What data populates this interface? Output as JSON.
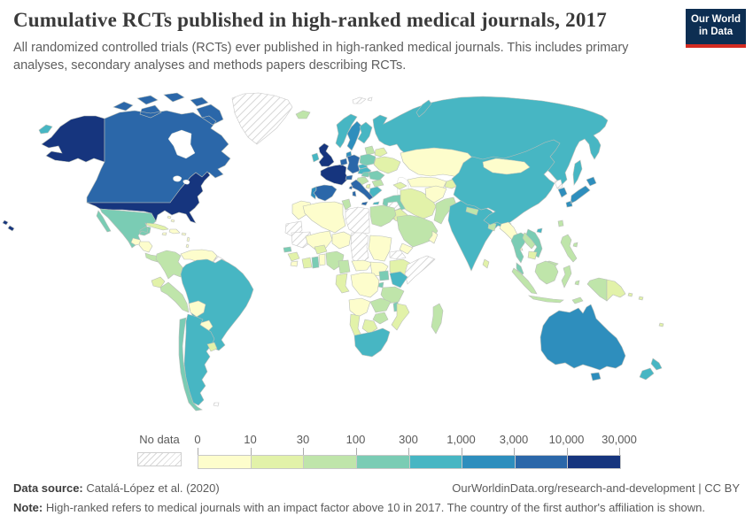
{
  "header": {
    "title": "Cumulative RCTs published in high-ranked medical journals, 2017",
    "subtitle": "All randomized controlled trials (RCTs) ever published in high-ranked medical journals. This includes primary analyses, secondary analyses and methods papers describing RCTs.",
    "logo_line1": "Our World",
    "logo_line2": "in Data",
    "logo_bg": "#0d2e52",
    "logo_accent": "#d42b21"
  },
  "legend": {
    "no_data_label": "No data",
    "tick_labels": [
      "0",
      "10",
      "30",
      "100",
      "300",
      "1,000",
      "3,000",
      "10,000",
      "30,000"
    ],
    "bins": [
      {
        "range": "0-10",
        "color": "#fdfdcc"
      },
      {
        "range": "10-30",
        "color": "#e2f2a9"
      },
      {
        "range": "30-100",
        "color": "#bfe5aa"
      },
      {
        "range": "100-300",
        "color": "#7accb4"
      },
      {
        "range": "300-1,000",
        "color": "#47b6c3"
      },
      {
        "range": "1,000-3,000",
        "color": "#2e8ebd"
      },
      {
        "range": "3,000-10,000",
        "color": "#2b67a9"
      },
      {
        "range": "10,000-30,000",
        "color": "#16357e"
      }
    ]
  },
  "footer": {
    "source_label": "Data source:",
    "source_text": "Catalá-López et al. (2020)",
    "link": "OurWorldinData.org/research-and-development",
    "separator": "|",
    "license": "CC BY",
    "note_label": "Note:",
    "note_text": "High-ranked refers to medical journals with an impact factor above 10 in 2017. The country of the first author's affiliation is shown."
  },
  "map": {
    "fills": {
      "usa": "#16357e",
      "alaska": "#16357e",
      "hawaii": "#16357e",
      "canada": "#2b67a9",
      "mexico": "#7accb4",
      "guatemala": "#fdfdcc",
      "honduras_nicaragua": "#fdfdcc",
      "costa_rica_panama": "#bfe5aa",
      "cuba": "#e2f2a9",
      "hispaniola": "#fdfdcc",
      "jamaica": "#fdfdcc",
      "puerto_rico": "#fdfdcc",
      "bahamas": "#fdfdcc",
      "lesser_antilles": "#fdfdcc",
      "colombia": "#bfe5aa",
      "venezuela": "#fdfdcc",
      "ecuador": "#e2f2a9",
      "peru": "#bfe5aa",
      "brazil": "#47b6c3",
      "bolivia": "#fdfdcc",
      "paraguay": "#fdfdcc",
      "uruguay": "#e2f2a9",
      "argentina": "#47b6c3",
      "chile": "#7accb4",
      "iceland": "#bfe5aa",
      "ireland": "#47b6c3",
      "uk": "#16357e",
      "portugal": "#2e8ebd",
      "spain": "#2b67a9",
      "france": "#16357e",
      "benelux": "#2b67a9",
      "germany": "#2b67a9",
      "switzerland": "#2b67a9",
      "denmark": "#2e8ebd",
      "norway": "#47b6c3",
      "sweden": "#2e8ebd",
      "finland": "#47b6c3",
      "baltics": "#bfe5aa",
      "poland": "#7accb4",
      "belarus": "#e2f2a9",
      "ukraine": "#e2f2a9",
      "czech_austria": "#47b6c3",
      "hungary": "#7accb4",
      "romania": "#7accb4",
      "balkans": "#bfe5aa",
      "bulgaria": "#bfe5aa",
      "albania": "#e2f2a9",
      "greece": "#47b6c3",
      "italy": "#2b67a9",
      "russia": "#47b6c3",
      "novaya_zemlya": "#47b6c3",
      "sakhalin": "#47b6c3",
      "chukotka_west": "#47b6c3",
      "turkey": "#7accb4",
      "caucasus": "#e2f2a9",
      "iraq": "#e2f2a9",
      "israel": "#2e8ebd",
      "jordan": "#e2f2a9",
      "saudi_arabia": "#bfe5aa",
      "yemen": "#fdfdcc",
      "oman": "#fdfdcc",
      "iran": "#e2f2a9",
      "afghanistan": "#fdfdcc",
      "pakistan": "#bfe5aa",
      "kazakhstan": "#fdfdcc",
      "central_asia": "#fdfdcc",
      "kyrgyz_tajik": "#e2f2a9",
      "india": "#47b6c3",
      "nepal": "#bfe5aa",
      "bangladesh": "#bfe5aa",
      "sri_lanka": "#e2f2a9",
      "myanmar": "#fdfdcc",
      "thailand": "#7accb4",
      "laos": "#bfe5aa",
      "cambodia": "#e2f2a9",
      "vietnam": "#7accb4",
      "malaysia": "#bfe5aa",
      "indonesia": "#bfe5aa",
      "philippines": "#bfe5aa",
      "taiwan": "#bfe5aa",
      "hainan": "#47b6c3",
      "china": "#47b6c3",
      "mongolia": "#fdfdcc",
      "south_korea": "#2e8ebd",
      "japan": "#2e8ebd",
      "west_papua": "#bfe5aa",
      "png": "#e2f2a9",
      "pacific_islands": "#e2f2a9",
      "australia": "#2e8ebd",
      "new_zealand": "#47b6c3",
      "morocco": "#fdfdcc",
      "algeria": "#fdfdcc",
      "tunisia": "#bfe5aa",
      "egypt": "#bfe5aa",
      "mali": "#fdfdcc",
      "niger": "#fdfdcc",
      "sudan": "#fdfdcc",
      "south_sudan": "#fdfdcc",
      "ethiopia": "#e2f2a9",
      "senegal": "#7accb4",
      "guinea": "#e2f2a9",
      "sierra_leone": "#fdfdcc",
      "burkina_faso": "#e2f2a9",
      "ivory_coast": "#e2f2a9",
      "ghana": "#7accb4",
      "togo_benin": "#fdfdcc",
      "nigeria": "#bfe5aa",
      "cameroon": "#bfe5aa",
      "car": "#fdfdcc",
      "drc": "#fdfdcc",
      "gabon_congo": "#e2f2a9",
      "uganda": "#7accb4",
      "kenya": "#47b6c3",
      "rwanda_burundi": "#7accb4",
      "tanzania": "#bfe5aa",
      "angola": "#fdfdcc",
      "zambia": "#bfe5aa",
      "malawi": "#7accb4",
      "mozambique": "#e2f2a9",
      "zimbabwe": "#bfe5aa",
      "botswana": "#e2f2a9",
      "namibia": "#e2f2a9",
      "south_africa": "#47b6c3",
      "madagascar": "#bfe5aa"
    },
    "no_data_countries": [
      "Greenland",
      "Western Sahara",
      "Mauritania",
      "Libya",
      "Chad",
      "Eritrea",
      "Somalia",
      "Syria",
      "North Korea",
      "Guyana",
      "Suriname",
      "French Guiana",
      "Falkland Islands",
      "Svalbard"
    ]
  },
  "chart_data": {
    "type": "heatmap",
    "subtype": "choropleth-world-map",
    "title": "Cumulative RCTs published in high-ranked medical journals, 2017",
    "unit": "cumulative RCTs (log-binned)",
    "legend_position": "bottom",
    "bins": [
      {
        "range": "0-10",
        "color": "#fdfdcc"
      },
      {
        "range": "10-30",
        "color": "#e2f2a9"
      },
      {
        "range": "30-100",
        "color": "#bfe5aa"
      },
      {
        "range": "100-300",
        "color": "#7accb4"
      },
      {
        "range": "300-1,000",
        "color": "#47b6c3"
      },
      {
        "range": "1,000-3,000",
        "color": "#2e8ebd"
      },
      {
        "range": "3,000-10,000",
        "color": "#2b67a9"
      },
      {
        "range": "10,000-30,000",
        "color": "#16357e"
      }
    ],
    "countries": {
      "United States": "10,000-30,000",
      "United Kingdom": "10,000-30,000",
      "France": "10,000-30,000",
      "Canada": "3,000-10,000",
      "Germany": "3,000-10,000",
      "Italy": "3,000-10,000",
      "Spain": "3,000-10,000",
      "Netherlands": "3,000-10,000",
      "Belgium": "3,000-10,000",
      "Switzerland": "3,000-10,000",
      "Australia": "1,000-3,000",
      "Japan": "1,000-3,000",
      "South Korea": "1,000-3,000",
      "Sweden": "1,000-3,000",
      "Denmark": "1,000-3,000",
      "Israel": "1,000-3,000",
      "Portugal": "1,000-3,000",
      "Russia": "300-1,000",
      "China": "300-1,000",
      "India": "300-1,000",
      "Brazil": "300-1,000",
      "Argentina": "300-1,000",
      "South Africa": "300-1,000",
      "New Zealand": "300-1,000",
      "Norway": "300-1,000",
      "Finland": "300-1,000",
      "Ireland": "300-1,000",
      "Greece": "300-1,000",
      "Austria": "300-1,000",
      "Kenya": "300-1,000",
      "Mexico": "100-300",
      "Turkey": "100-300",
      "Thailand": "100-300",
      "Vietnam": "100-300",
      "Chile": "100-300",
      "Poland": "100-300",
      "Romania": "100-300",
      "Hungary": "100-300",
      "Ghana": "100-300",
      "Uganda": "100-300",
      "Colombia": "30-100",
      "Peru": "30-100",
      "Nigeria": "30-100",
      "Egypt": "30-100",
      "Saudi Arabia": "30-100",
      "Pakistan": "30-100",
      "Indonesia": "30-100",
      "Malaysia": "30-100",
      "Philippines": "30-100",
      "Tanzania": "30-100",
      "Zambia": "30-100",
      "Zimbabwe": "30-100",
      "Madagascar": "30-100",
      "Iceland": "30-100",
      "Taiwan": "30-100",
      "Nepal": "30-100",
      "Bangladesh": "30-100",
      "Ukraine": "10-30",
      "Iran": "10-30",
      "Iraq": "10-30",
      "Cuba": "10-30",
      "Ecuador": "10-30",
      "Uruguay": "10-30",
      "Sri Lanka": "10-30",
      "Ethiopia": "10-30",
      "Mozambique": "10-30",
      "Botswana": "10-30",
      "Namibia": "10-30",
      "Papua New Guinea": "10-30",
      "Venezuela": "0-10",
      "Bolivia": "0-10",
      "Paraguay": "0-10",
      "Kazakhstan": "0-10",
      "Mongolia": "0-10",
      "Afghanistan": "0-10",
      "Myanmar": "0-10",
      "Algeria": "0-10",
      "Morocco": "0-10",
      "Mali": "0-10",
      "Niger": "0-10",
      "Sudan": "0-10",
      "Angola": "0-10",
      "DR Congo": "0-10",
      "Yemen": "0-10",
      "Oman": "0-10",
      "Guatemala": "0-10",
      "Honduras": "0-10",
      "Greenland": "no data",
      "Libya": "no data",
      "Chad": "no data",
      "Mauritania": "no data",
      "Western Sahara": "no data",
      "Somalia": "no data",
      "Eritrea": "no data",
      "Syria": "no data",
      "North Korea": "no data",
      "Guyana": "no data",
      "Suriname": "no data"
    }
  }
}
